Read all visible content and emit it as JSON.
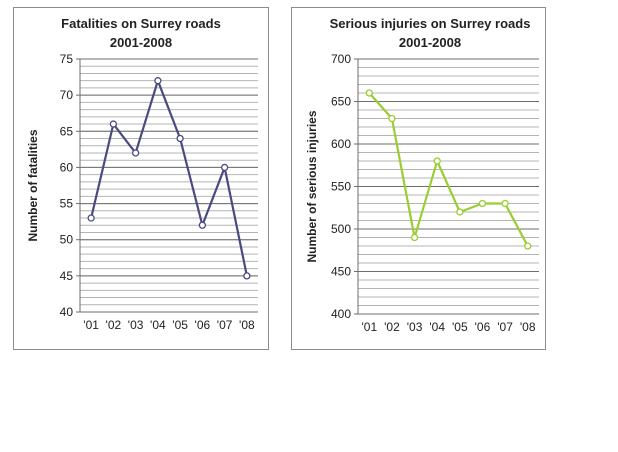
{
  "chart_data": [
    {
      "type": "line",
      "title": "Fatalities on Surrey roads",
      "subtitle": "2001-2008",
      "xlabel": "",
      "ylabel": "Number of fatalities",
      "categories": [
        "'01",
        "'02",
        "'03",
        "'04",
        "'05",
        "'06",
        "'07",
        "'08"
      ],
      "values": [
        53,
        66,
        62,
        72,
        64,
        52,
        60,
        45
      ],
      "ylim": [
        40,
        75
      ],
      "yticks": [
        "40",
        "45",
        "50",
        "55",
        "60",
        "65",
        "70",
        "75"
      ],
      "line_color": "#4a4a80",
      "grid": true,
      "legend": "none"
    },
    {
      "type": "line",
      "title": "Serious injuries on Surrey roads",
      "subtitle": "2001-2008",
      "xlabel": "",
      "ylabel": "Number of serious injuries",
      "categories": [
        "'01",
        "'02",
        "'03",
        "'04",
        "'05",
        "'06",
        "'07",
        "'08"
      ],
      "values": [
        660,
        630,
        490,
        580,
        520,
        530,
        530,
        480
      ],
      "ylim": [
        400,
        700
      ],
      "yticks": [
        "400",
        "450",
        "500",
        "550",
        "600",
        "650",
        "700"
      ],
      "line_color": "#9acd32",
      "grid": true,
      "legend": "none"
    }
  ]
}
